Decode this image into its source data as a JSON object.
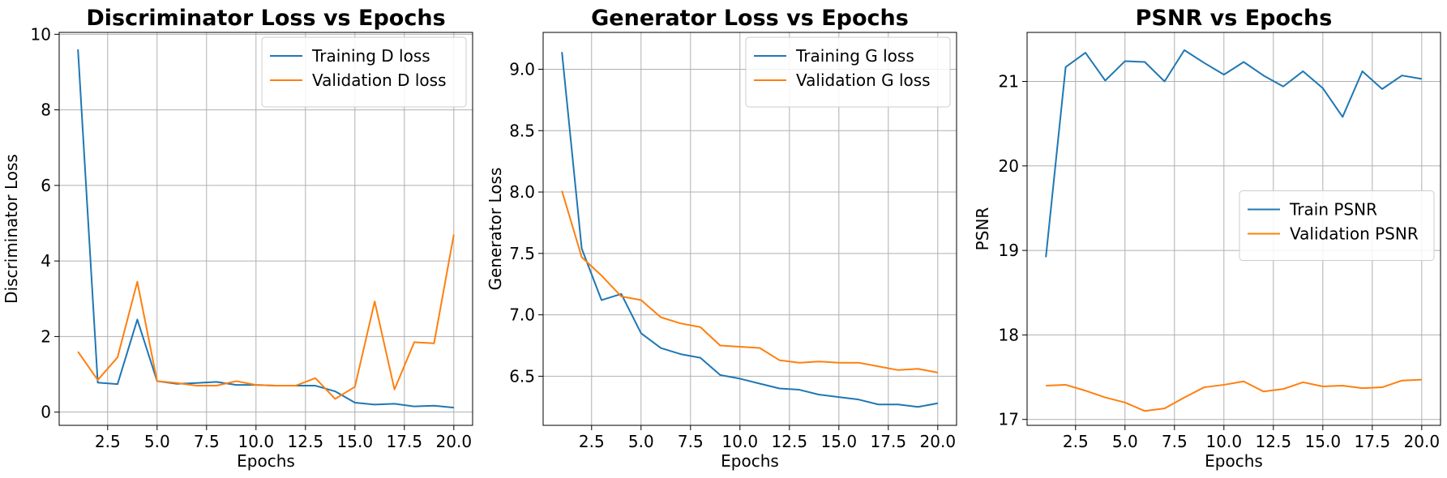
{
  "chart_data": [
    {
      "type": "line",
      "title": "Discriminator Loss vs Epochs",
      "xlabel": "Epochs",
      "ylabel": "Discriminator Loss",
      "xlim": [
        0.05,
        20.95
      ],
      "ylim": [
        -0.35,
        10.05
      ],
      "xticks": [
        2.5,
        5.0,
        7.5,
        10.0,
        12.5,
        15.0,
        17.5,
        20.0
      ],
      "xtick_labels": [
        "2.5",
        "5.0",
        "7.5",
        "10.0",
        "12.5",
        "15.0",
        "17.5",
        "20.0"
      ],
      "yticks": [
        0,
        2,
        4,
        6,
        8,
        10
      ],
      "ytick_labels": [
        "0",
        "2",
        "4",
        "6",
        "8",
        "10"
      ],
      "grid": true,
      "legend_position": "top-right",
      "x": [
        1,
        2,
        3,
        4,
        5,
        6,
        7,
        8,
        9,
        10,
        11,
        12,
        13,
        14,
        15,
        16,
        17,
        18,
        19,
        20
      ],
      "series": [
        {
          "name": "Training D loss",
          "color": "#1f77b4",
          "values": [
            9.6,
            0.78,
            0.74,
            2.45,
            0.82,
            0.75,
            0.77,
            0.8,
            0.72,
            0.72,
            0.7,
            0.7,
            0.7,
            0.55,
            0.25,
            0.2,
            0.22,
            0.15,
            0.17,
            0.12
          ]
        },
        {
          "name": "Validation D loss",
          "color": "#ff7f0e",
          "values": [
            1.6,
            0.85,
            1.45,
            3.45,
            0.82,
            0.77,
            0.7,
            0.7,
            0.82,
            0.72,
            0.7,
            0.7,
            0.9,
            0.35,
            0.67,
            2.93,
            0.6,
            1.85,
            1.82,
            4.7
          ]
        }
      ]
    },
    {
      "type": "line",
      "title": "Generator Loss vs Epochs",
      "xlabel": "Epochs",
      "ylabel": "Generator Loss",
      "xlim": [
        0.05,
        20.95
      ],
      "ylim": [
        6.1,
        9.3
      ],
      "xticks": [
        2.5,
        5.0,
        7.5,
        10.0,
        12.5,
        15.0,
        17.5,
        20.0
      ],
      "xtick_labels": [
        "2.5",
        "5.0",
        "7.5",
        "10.0",
        "12.5",
        "15.0",
        "17.5",
        "20.0"
      ],
      "yticks": [
        6.5,
        7.0,
        7.5,
        8.0,
        8.5,
        9.0
      ],
      "ytick_labels": [
        "6.5",
        "7.0",
        "7.5",
        "8.0",
        "8.5",
        "9.0"
      ],
      "grid": true,
      "legend_position": "top-right",
      "x": [
        1,
        2,
        3,
        4,
        5,
        6,
        7,
        8,
        9,
        10,
        11,
        12,
        13,
        14,
        15,
        16,
        17,
        18,
        19,
        20
      ],
      "series": [
        {
          "name": "Training G loss",
          "color": "#1f77b4",
          "values": [
            9.14,
            7.54,
            7.12,
            7.17,
            6.85,
            6.73,
            6.68,
            6.65,
            6.51,
            6.48,
            6.44,
            6.4,
            6.39,
            6.35,
            6.33,
            6.31,
            6.27,
            6.27,
            6.25,
            6.28
          ]
        },
        {
          "name": "Validation G loss",
          "color": "#ff7f0e",
          "values": [
            8.01,
            7.47,
            7.32,
            7.15,
            7.12,
            6.98,
            6.93,
            6.9,
            6.75,
            6.74,
            6.73,
            6.63,
            6.61,
            6.62,
            6.61,
            6.61,
            6.58,
            6.55,
            6.56,
            6.53
          ]
        }
      ]
    },
    {
      "type": "line",
      "title": "PSNR vs Epochs",
      "xlabel": "Epochs",
      "ylabel": "PSNR",
      "xlim": [
        0.05,
        20.95
      ],
      "ylim": [
        16.93,
        21.58
      ],
      "xticks": [
        2.5,
        5.0,
        7.5,
        10.0,
        12.5,
        15.0,
        17.5,
        20.0
      ],
      "xtick_labels": [
        "2.5",
        "5.0",
        "7.5",
        "10.0",
        "12.5",
        "15.0",
        "17.5",
        "20.0"
      ],
      "yticks": [
        17,
        18,
        19,
        20,
        21
      ],
      "ytick_labels": [
        "17",
        "18",
        "19",
        "20",
        "21"
      ],
      "grid": true,
      "legend_position": "center-right",
      "x": [
        1,
        2,
        3,
        4,
        5,
        6,
        7,
        8,
        9,
        10,
        11,
        12,
        13,
        14,
        15,
        16,
        17,
        18,
        19,
        20
      ],
      "series": [
        {
          "name": "Train PSNR",
          "color": "#1f77b4",
          "values": [
            18.92,
            21.17,
            21.34,
            21.01,
            21.24,
            21.23,
            21.0,
            21.37,
            21.22,
            21.08,
            21.23,
            21.07,
            20.94,
            21.12,
            20.92,
            20.58,
            21.12,
            20.91,
            21.07,
            21.03
          ]
        },
        {
          "name": "Validation PSNR",
          "color": "#ff7f0e",
          "values": [
            17.4,
            17.41,
            17.34,
            17.26,
            17.2,
            17.1,
            17.13,
            17.26,
            17.38,
            17.41,
            17.45,
            17.33,
            17.36,
            17.44,
            17.39,
            17.4,
            17.37,
            17.38,
            17.46,
            17.47
          ]
        }
      ]
    }
  ]
}
